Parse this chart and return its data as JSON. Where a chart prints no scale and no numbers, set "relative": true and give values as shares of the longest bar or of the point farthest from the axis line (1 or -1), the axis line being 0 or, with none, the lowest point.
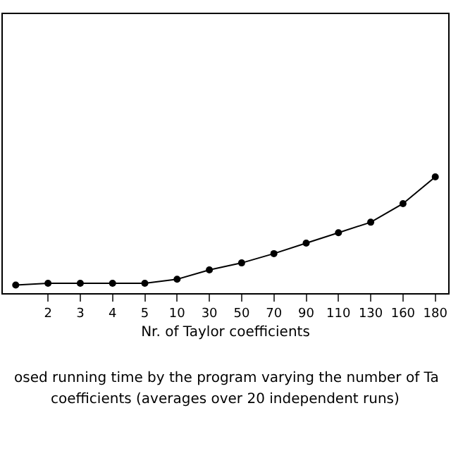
{
  "chart_data": {
    "type": "line",
    "xlabel": "Nr. of Taylor coefficients",
    "categories": [
      null,
      "2",
      "3",
      "4",
      "5",
      "10",
      "30",
      "50",
      "70",
      "90",
      "110",
      "130",
      "160",
      "180"
    ],
    "relative": true,
    "marker": "circle",
    "line_style": "solid",
    "series": [
      {
        "color": "#000000",
        "values": [
          0.07,
          0.085,
          0.085,
          0.085,
          0.085,
          0.12,
          0.2,
          0.26,
          0.34,
          0.43,
          0.52,
          0.61,
          0.77,
          1
        ]
      }
    ],
    "annotations": [
      "osed running time by the program varying the number of Ta",
      "coefficients (averages over 20 independent runs)"
    ]
  }
}
